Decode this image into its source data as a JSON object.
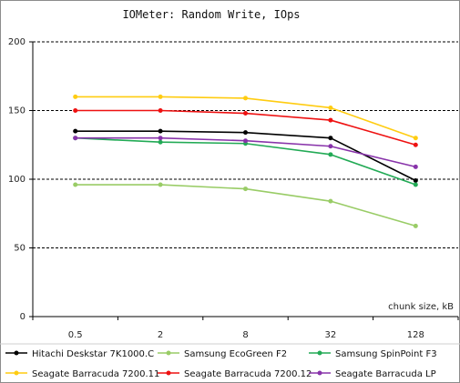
{
  "chart_data": {
    "type": "line",
    "title": "IOMeter: Random  Write, IOps",
    "xlabel": "chunk size, kB",
    "ylabel": "",
    "categories": [
      "0.5",
      "2",
      "8",
      "32",
      "128"
    ],
    "ylim": [
      0,
      200
    ],
    "yticks": [
      0,
      50,
      100,
      150,
      200
    ],
    "grid": "horizontal dashed at 50, 100, 150, 200",
    "legend_position": "bottom",
    "series": [
      {
        "name": "Hitachi Deskstar 7K1000.C",
        "color": "#000000",
        "values": [
          135,
          135,
          134,
          130,
          99
        ]
      },
      {
        "name": "Samsung EcoGreen F2",
        "color": "#99cc66",
        "values": [
          96,
          96,
          93,
          84,
          66
        ]
      },
      {
        "name": "Samsung SpinPoint F3",
        "color": "#22aa55",
        "values": [
          130,
          127,
          126,
          118,
          96
        ]
      },
      {
        "name": "Seagate Barracuda 7200.11",
        "color": "#ffcc11",
        "values": [
          160,
          160,
          159,
          152,
          130
        ]
      },
      {
        "name": "Seagate Barracuda 7200.12",
        "color": "#ee1111",
        "values": [
          150,
          150,
          148,
          143,
          125
        ]
      },
      {
        "name": "Seagate Barracuda LP",
        "color": "#8833aa",
        "values": [
          130,
          130,
          128,
          124,
          109
        ]
      }
    ]
  }
}
